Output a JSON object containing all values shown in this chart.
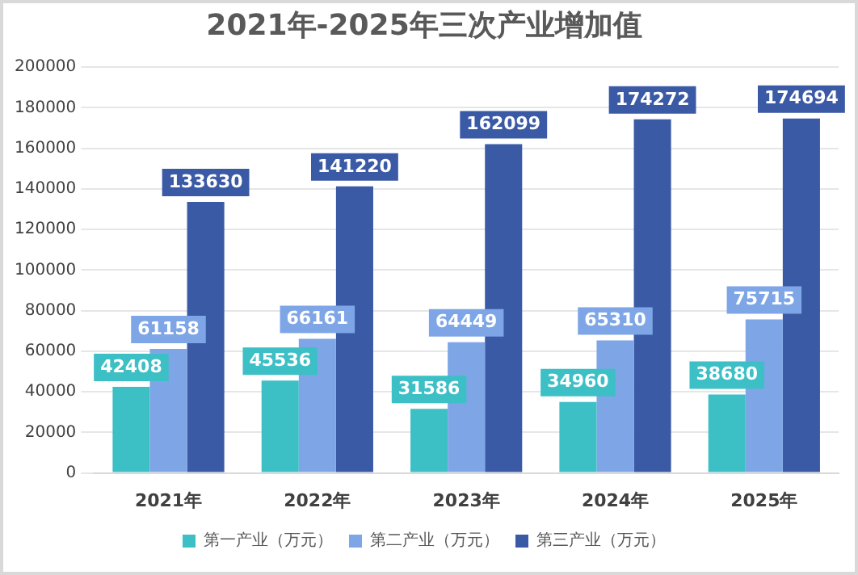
{
  "chart_data": {
    "type": "bar",
    "title": "2021年-2025年三次产业增加值",
    "categories": [
      "2021年",
      "2022年",
      "2023年",
      "2024年",
      "2025年"
    ],
    "series": [
      {
        "name": "第一产业（万元）",
        "color": "#3dbfc6",
        "values": [
          42408,
          45536,
          31586,
          34960,
          38680
        ]
      },
      {
        "name": "第二产业（万元）",
        "color": "#7ea6e6",
        "values": [
          61158,
          66161,
          64449,
          65310,
          75715
        ]
      },
      {
        "name": "第三产业（万元）",
        "color": "#3b5aa6",
        "values": [
          133630,
          141220,
          162099,
          174272,
          174694
        ]
      }
    ],
    "ylim": [
      0,
      200000
    ],
    "yticks": [
      0,
      20000,
      40000,
      60000,
      80000,
      100000,
      120000,
      140000,
      160000,
      180000,
      200000
    ],
    "grid": "y",
    "legend": "bottom",
    "data_labels": true
  }
}
